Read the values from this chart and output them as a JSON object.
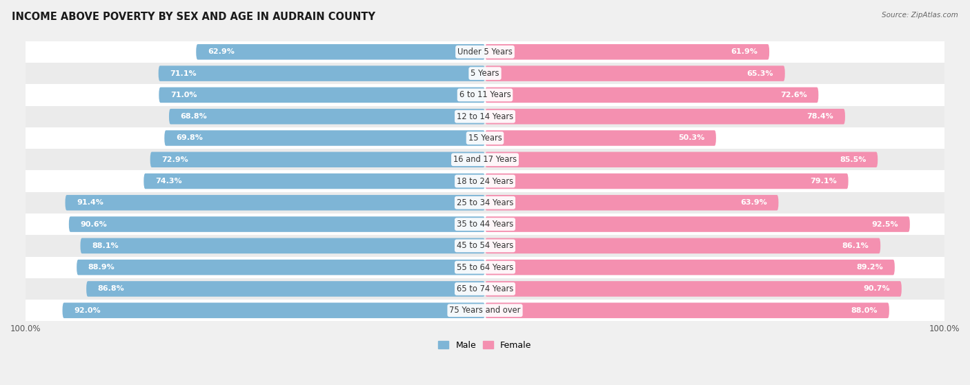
{
  "title": "INCOME ABOVE POVERTY BY SEX AND AGE IN AUDRAIN COUNTY",
  "source": "Source: ZipAtlas.com",
  "categories": [
    "Under 5 Years",
    "5 Years",
    "6 to 11 Years",
    "12 to 14 Years",
    "15 Years",
    "16 and 17 Years",
    "18 to 24 Years",
    "25 to 34 Years",
    "35 to 44 Years",
    "45 to 54 Years",
    "55 to 64 Years",
    "65 to 74 Years",
    "75 Years and over"
  ],
  "male": [
    62.9,
    71.1,
    71.0,
    68.8,
    69.8,
    72.9,
    74.3,
    91.4,
    90.6,
    88.1,
    88.9,
    86.8,
    92.0
  ],
  "female": [
    61.9,
    65.3,
    72.6,
    78.4,
    50.3,
    85.5,
    79.1,
    63.9,
    92.5,
    86.1,
    89.2,
    90.7,
    88.0
  ],
  "male_color": "#7eb5d6",
  "female_color": "#f490b0",
  "bg_color": "#f0f0f0",
  "row_bg_odd": "#f8f8f8",
  "row_bg_even": "#e8e8e8",
  "label_fontsize": 8.0,
  "title_fontsize": 10.5,
  "axis_max": 100.0,
  "legend_male": "Male",
  "legend_female": "Female"
}
